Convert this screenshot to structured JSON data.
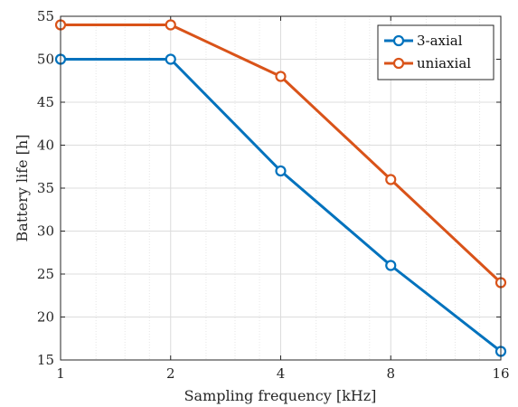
{
  "chart_data": {
    "type": "line",
    "x_scale": "log2",
    "x": [
      1,
      2,
      4,
      8,
      16
    ],
    "x_tick_labels": [
      "1",
      "2",
      "4",
      "8",
      "16"
    ],
    "xlim": [
      1,
      16
    ],
    "ylim": [
      15,
      55
    ],
    "y_ticks": [
      15,
      20,
      25,
      30,
      35,
      40,
      45,
      50,
      55
    ],
    "xlabel": "Sampling frequency [kHz]",
    "ylabel": "Battery life [h]",
    "grid": true,
    "legend_position": "top-right",
    "series": [
      {
        "name": "3-axial",
        "color": "#0072BD",
        "marker": "circle",
        "values": [
          50,
          50,
          37,
          26,
          16
        ]
      },
      {
        "name": "uniaxial",
        "color": "#D95319",
        "marker": "circle",
        "values": [
          54,
          54,
          48,
          36,
          24
        ]
      }
    ]
  }
}
